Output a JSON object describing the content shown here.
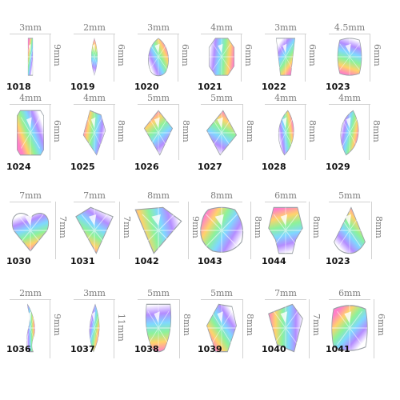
{
  "rows": [
    [
      {
        "code": "1018",
        "width_label": "3mm",
        "height_label": "9mm",
        "shape": "baguette-icon"
      },
      {
        "code": "1019",
        "width_label": "2mm",
        "height_label": "6mm",
        "shape": "marquise-icon"
      },
      {
        "code": "1020",
        "width_label": "3mm",
        "height_label": "6mm",
        "shape": "pear-icon"
      },
      {
        "code": "1021",
        "width_label": "4mm",
        "height_label": "6mm",
        "shape": "octagon-icon"
      },
      {
        "code": "1022",
        "width_label": "3mm",
        "height_label": "6mm",
        "shape": "trapezoid-icon"
      },
      {
        "code": "1023",
        "width_label": "4.5mm",
        "height_label": "6mm",
        "shape": "cushion-icon"
      }
    ],
    [
      {
        "code": "1024",
        "width_label": "4mm",
        "height_label": "6mm",
        "shape": "emerald-cut-icon"
      },
      {
        "code": "1025",
        "width_label": "4mm",
        "height_label": "8mm",
        "shape": "shield-icon"
      },
      {
        "code": "1026",
        "width_label": "5mm",
        "height_label": "8mm",
        "shape": "kite-icon"
      },
      {
        "code": "1027",
        "width_label": "5mm",
        "height_label": "8mm",
        "shape": "rhombus-icon"
      },
      {
        "code": "1028",
        "width_label": "4mm",
        "height_label": "8mm",
        "shape": "leaf-icon"
      },
      {
        "code": "1029",
        "width_label": "4mm",
        "height_label": "8mm",
        "shape": "navette-icon"
      }
    ],
    [
      {
        "code": "1030",
        "width_label": "7mm",
        "height_label": "7mm",
        "shape": "heart-icon"
      },
      {
        "code": "1031",
        "width_label": "7mm",
        "height_label": "7mm",
        "shape": "trillion-heart-icon"
      },
      {
        "code": "1042",
        "width_label": "8mm",
        "height_label": "9mm",
        "shape": "triangle-icon"
      },
      {
        "code": "1043",
        "width_label": "8mm",
        "height_label": "8mm",
        "shape": "round-blob-icon"
      },
      {
        "code": "1044",
        "width_label": "6mm",
        "height_label": "8mm",
        "shape": "skull-icon"
      },
      {
        "code": "1023",
        "width_label": "5mm",
        "height_label": "8mm",
        "shape": "teardrop-icon"
      }
    ],
    [
      {
        "code": "1036",
        "width_label": "2mm",
        "height_label": "9mm",
        "shape": "wave-icon"
      },
      {
        "code": "1037",
        "width_label": "3mm",
        "height_label": "11mm",
        "shape": "long-navette-icon"
      },
      {
        "code": "1038",
        "width_label": "5mm",
        "height_label": "8mm",
        "shape": "drop-icon"
      },
      {
        "code": "1039",
        "width_label": "5mm",
        "height_label": "8mm",
        "shape": "flame-icon"
      },
      {
        "code": "1040",
        "width_label": "7mm",
        "height_label": "7mm",
        "shape": "irregular-icon"
      },
      {
        "code": "1041",
        "width_label": "6mm",
        "height_label": "6mm",
        "shape": "wavy-square-icon"
      }
    ]
  ],
  "colors": {
    "rule": "#d2d2d2",
    "label": "#7d7d7d",
    "code": "#111111",
    "gem_stops": [
      "#ff7fc8",
      "#ffd36b",
      "#8cf29a",
      "#7fd8ff",
      "#b48cff",
      "#ffffff"
    ]
  }
}
